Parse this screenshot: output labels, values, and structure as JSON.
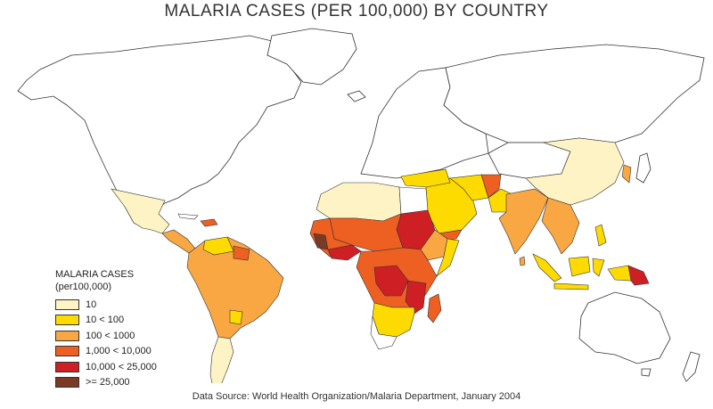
{
  "title": "MALARIA CASES (PER 100,000) BY COUNTRY",
  "legend": {
    "title_line1": "MALARIA CASES",
    "title_line2": "(per100,000)",
    "items": [
      {
        "label": "10",
        "color": "#FDF3C4"
      },
      {
        "label": "10 < 100",
        "color": "#FDDA00"
      },
      {
        "label": "100 < 1000",
        "color": "#F9A743"
      },
      {
        "label": "1,000 < 10,000",
        "color": "#EE5F22"
      },
      {
        "label": "10,000 < 25,000",
        "color": "#CE1F25"
      },
      {
        "label": ">= 25,000",
        "color": "#7A3A23"
      }
    ]
  },
  "source": "Data Source: World Health Organization/Malaria Department, January 2004"
}
